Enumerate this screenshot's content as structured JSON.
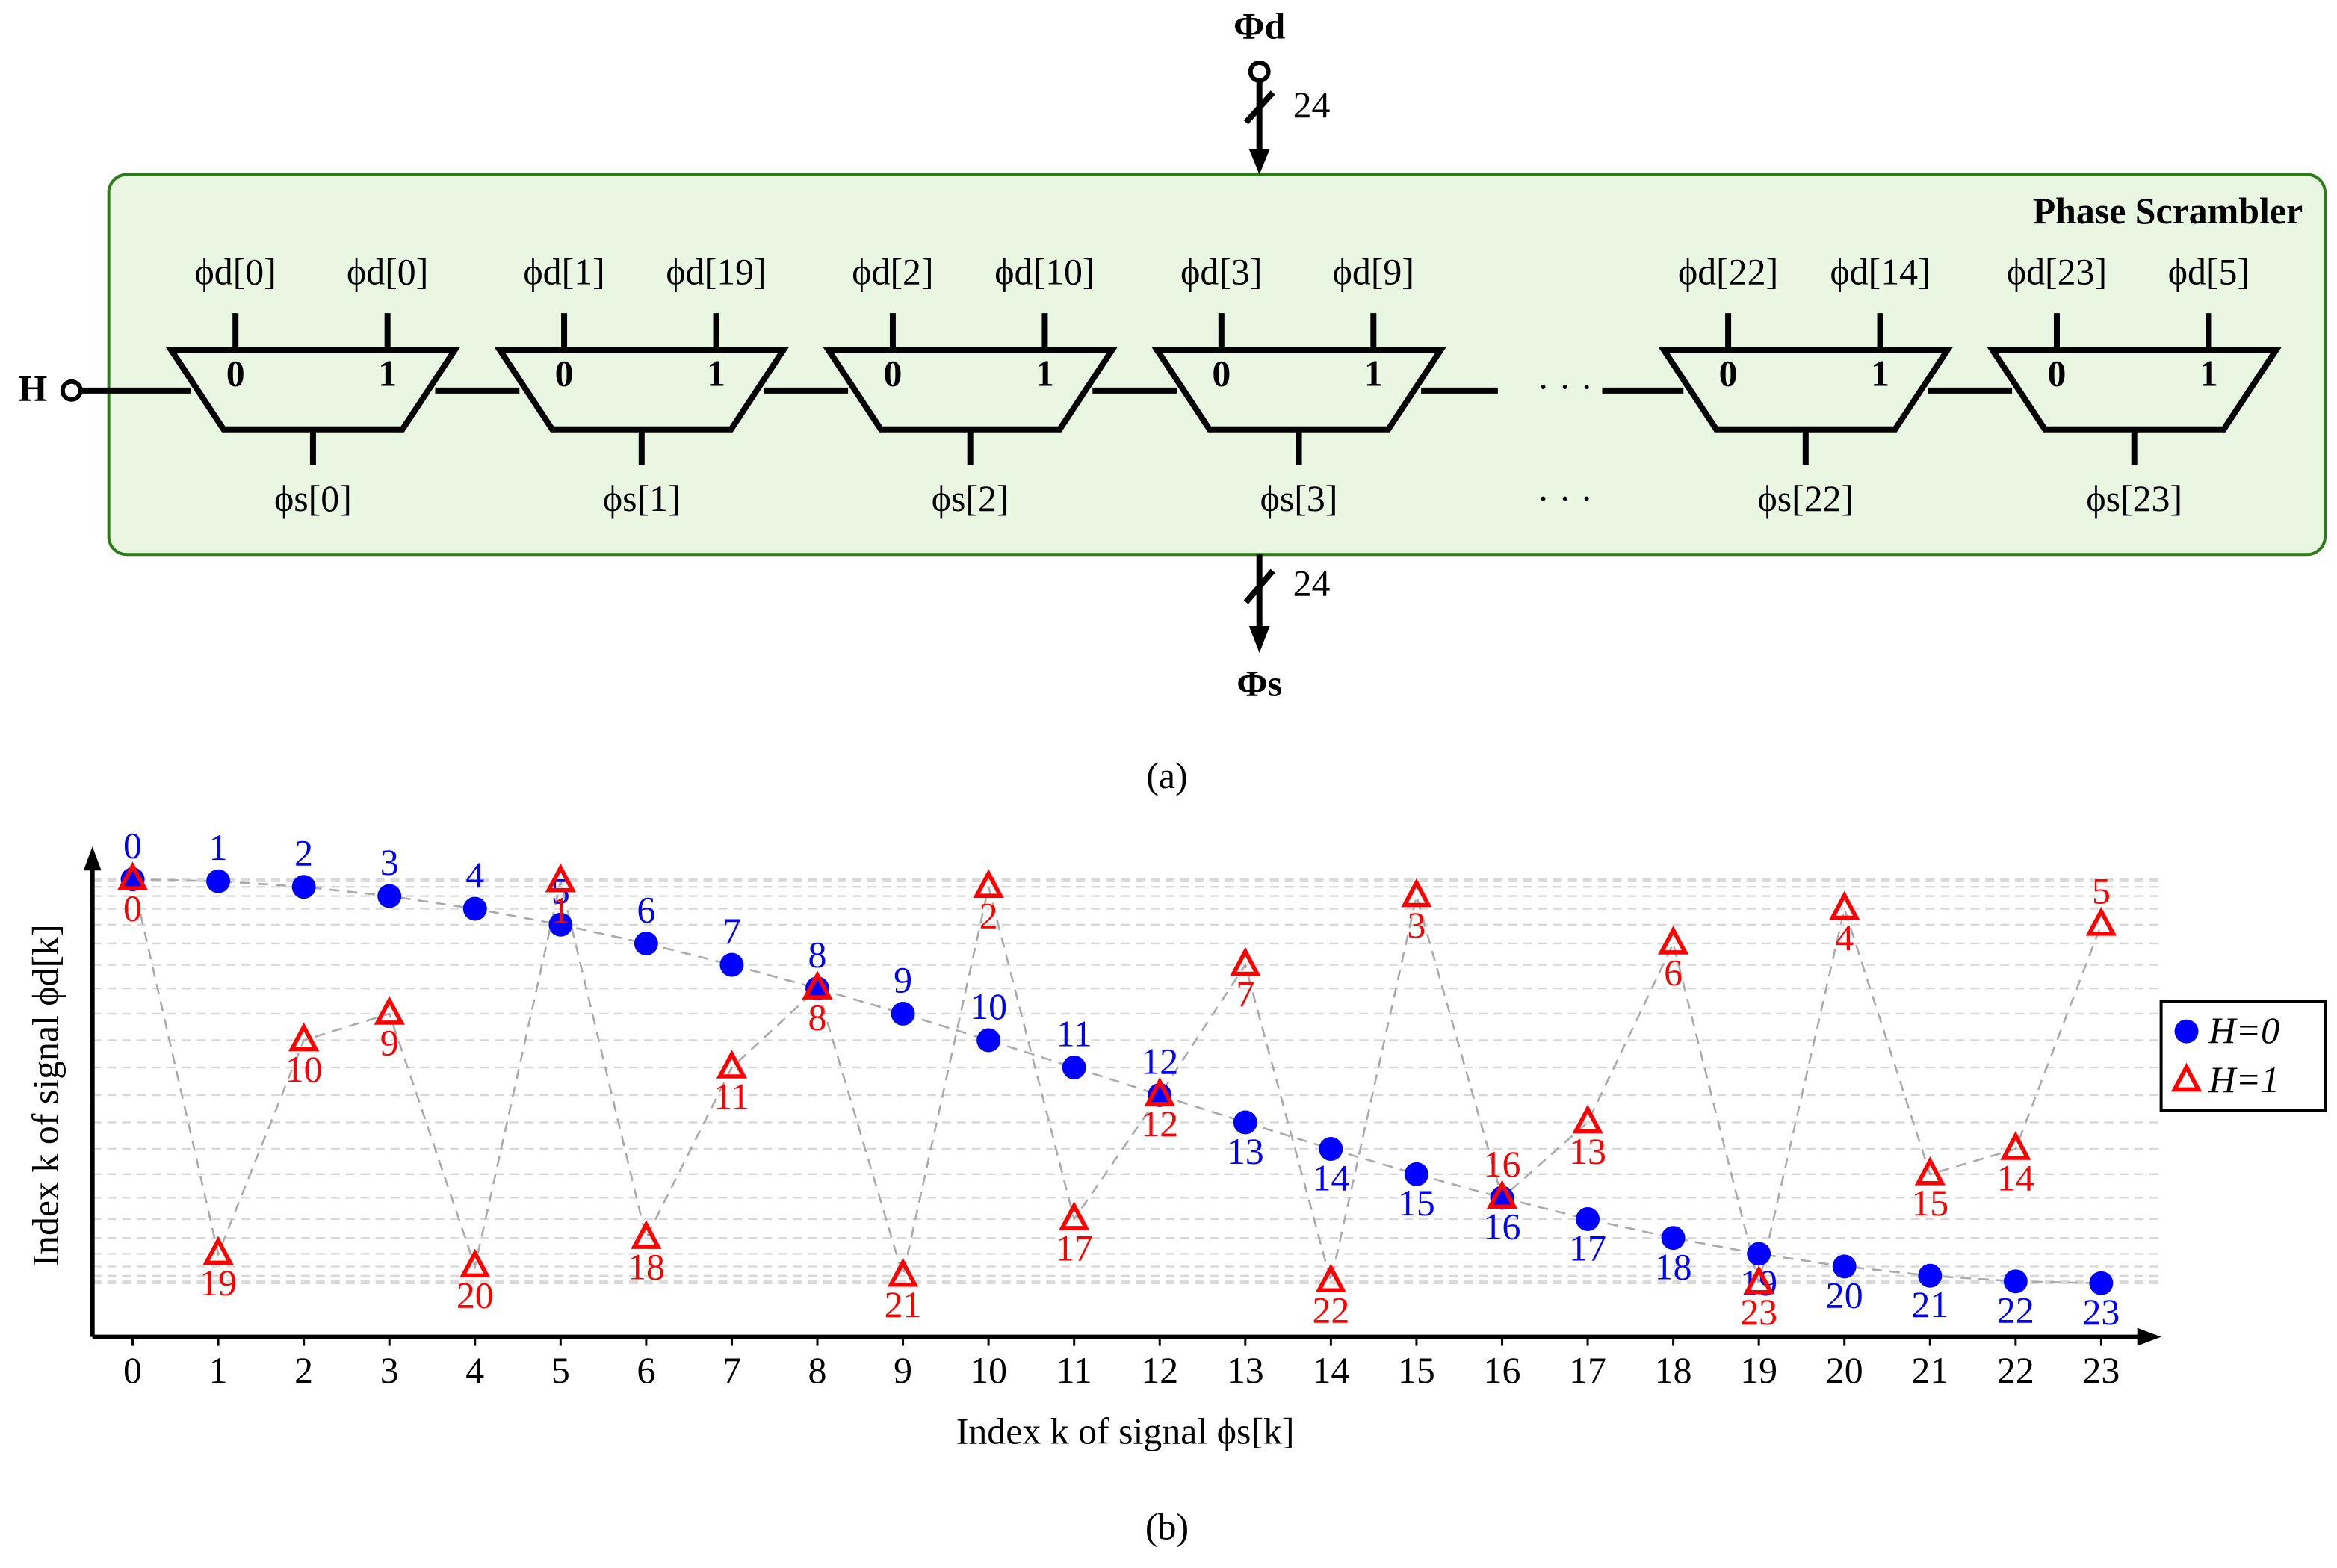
{
  "diagram": {
    "input_top": {
      "label": "Φd",
      "width": "24"
    },
    "title": "Phase Scrambler",
    "input": "H",
    "muxes": [
      {
        "in0": "ϕd[0]",
        "in1": "ϕd[0]",
        "sel0": "0",
        "sel1": "1",
        "out": "ϕs[0]"
      },
      {
        "in0": "ϕd[1]",
        "in1": "ϕd[19]",
        "sel0": "0",
        "sel1": "1",
        "out": "ϕs[1]"
      },
      {
        "in0": "ϕd[2]",
        "in1": "ϕd[10]",
        "sel0": "0",
        "sel1": "1",
        "out": "ϕs[2]"
      },
      {
        "in0": "ϕd[3]",
        "in1": "ϕd[9]",
        "sel0": "0",
        "sel1": "1",
        "out": "ϕs[3]"
      },
      {
        "in0": "ϕd[22]",
        "in1": "ϕd[14]",
        "sel0": "0",
        "sel1": "1",
        "out": "ϕs[22]"
      },
      {
        "in0": "ϕd[23]",
        "in1": "ϕd[5]",
        "sel0": "0",
        "sel1": "1",
        "out": "ϕs[23]"
      }
    ],
    "ellipses": [
      "· · ·",
      "· · ·"
    ],
    "output": {
      "label": "Φs",
      "width": "24"
    },
    "caption": "(a)"
  },
  "chart_data": {
    "type": "scatter",
    "caption": "(b)",
    "x_label": "Index k of signal ϕs[k]",
    "y_label": "Index k of signal ϕd[k]",
    "x": [
      0,
      1,
      2,
      3,
      4,
      5,
      6,
      7,
      8,
      9,
      10,
      11,
      12,
      13,
      14,
      15,
      16,
      17,
      18,
      19,
      20,
      21,
      22,
      23
    ],
    "series": [
      {
        "name": "H=0",
        "color": "#0000ff",
        "values": [
          0,
          1,
          2,
          3,
          4,
          5,
          6,
          7,
          8,
          9,
          10,
          11,
          12,
          13,
          14,
          15,
          16,
          17,
          18,
          19,
          20,
          21,
          22,
          23
        ]
      },
      {
        "name": "H=1",
        "color": "#ff0000",
        "values": [
          0,
          19,
          10,
          9,
          20,
          1,
          18,
          11,
          8,
          21,
          2,
          17,
          12,
          7,
          22,
          3,
          16,
          13,
          6,
          23,
          4,
          15,
          14,
          5
        ]
      }
    ],
    "xlim": [
      -0.47,
      23.7
    ],
    "xticks": [
      0,
      1,
      2,
      3,
      4,
      5,
      6,
      7,
      8,
      9,
      10,
      11,
      12,
      13,
      14,
      15,
      16,
      17,
      18,
      19,
      20,
      21,
      22,
      23
    ],
    "ylim": [
      0,
      23
    ],
    "yscale": "cosine",
    "grid": true,
    "legend": "right"
  }
}
